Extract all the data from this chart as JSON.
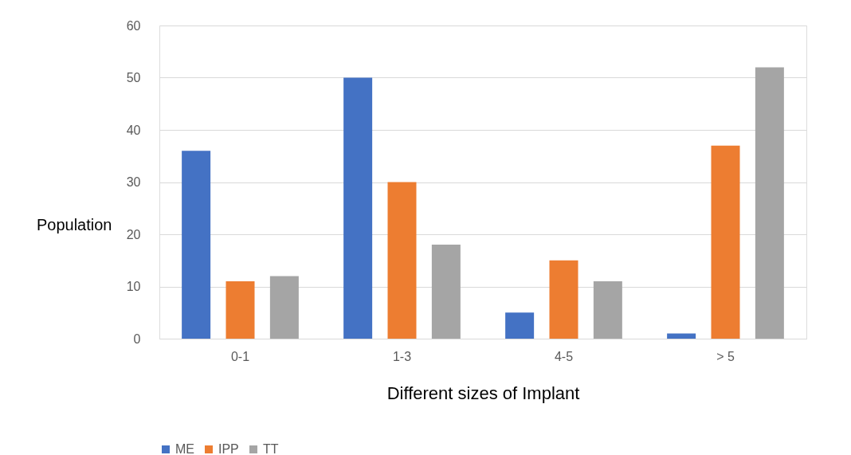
{
  "chart_data": {
    "type": "bar",
    "xlabel": "Different sizes of Implant",
    "ylabel": "Population",
    "categories": [
      "0-1",
      "1-3",
      "4-5",
      "> 5"
    ],
    "series": [
      {
        "name": "ME",
        "color": "#4472c4",
        "values": [
          36,
          50,
          5,
          1
        ]
      },
      {
        "name": "IPP",
        "color": "#ed7d31",
        "values": [
          11,
          30,
          15,
          37
        ]
      },
      {
        "name": "TT",
        "color": "#a5a5a5",
        "values": [
          12,
          18,
          11,
          52
        ]
      }
    ],
    "ylim": [
      0,
      60
    ],
    "yticks": [
      0,
      10,
      20,
      30,
      40,
      50,
      60
    ],
    "grid": "y",
    "legend": "bottom"
  }
}
